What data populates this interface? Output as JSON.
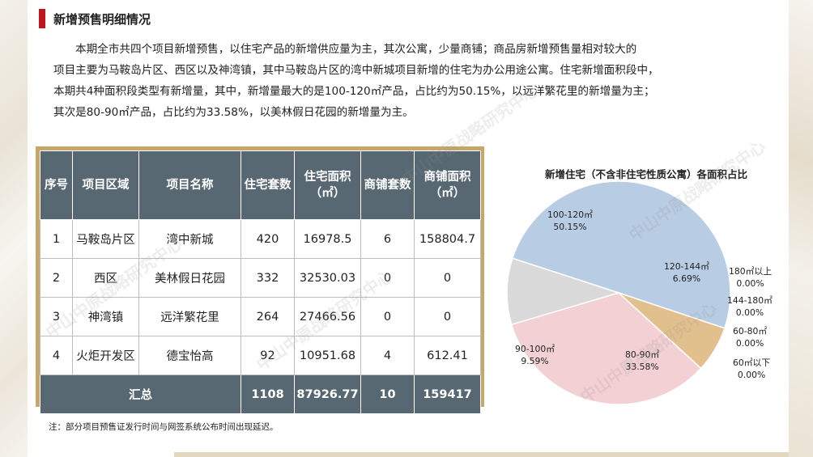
{
  "title": "新增预售明细情况",
  "paragraph": [
    "本期全市共四个项目新增预售，以住宅产品的新增供应量为主，其次公寓，少量商铺；商品房新增预售量相对较大的",
    "项目主要为马鞍岛片区、西区以及神湾镇，其中马鞍岛片区的湾中新城项目新增的住宅为办公用途公寓。住宅新增面积段中，",
    "本期共4种面积段类型有新增量，其中，新增量最大的是100-120㎡产品，占比约为50.15%，以远洋繁花里的新增量为主；",
    "其次是80-90㎡产品，占比约为33.58%，以美林假日花园的新增量为主。"
  ],
  "table": {
    "headers": [
      "序号",
      "项目区域",
      "项目名称",
      "住宅套数",
      "住宅面积（㎡）",
      "商铺套数",
      "商铺面积（㎡）"
    ],
    "rows": [
      [
        "1",
        "马鞍岛片区",
        "湾中新城",
        "420",
        "16978.5",
        "6",
        "158804.7"
      ],
      [
        "2",
        "西区",
        "美林假日花园",
        "332",
        "32530.03",
        "0",
        "0"
      ],
      [
        "3",
        "神湾镇",
        "远洋繁花里",
        "264",
        "27466.56",
        "0",
        "0"
      ],
      [
        "4",
        "火炬开发区",
        "德宝怡高",
        "92",
        "10951.68",
        "4",
        "612.41"
      ]
    ],
    "total": [
      "汇总",
      "1108",
      "87926.77",
      "10",
      "159417"
    ]
  },
  "note": "注：部分项目预售证发行时间与网签系统公布时间出现延迟。",
  "chart_data": {
    "type": "pie",
    "title": "新增住宅（不含非住宅性质公寓）各面积占比",
    "slices": [
      {
        "label": "100-120㎡",
        "percent_text": "50.15%",
        "value": 50.15,
        "color": "#b8cce4"
      },
      {
        "label": "120-144㎡",
        "percent_text": "6.69%",
        "value": 6.69,
        "color": "#e2c08d"
      },
      {
        "label": "180㎡以上",
        "percent_text": "0.00%",
        "value": 0,
        "color": "#8faadc"
      },
      {
        "label": "144-180㎡",
        "percent_text": "0.00%",
        "value": 0,
        "color": "#a9d18e"
      },
      {
        "label": "60-80㎡",
        "percent_text": "0.00%",
        "value": 0,
        "color": "#f4b183"
      },
      {
        "label": "60㎡以下",
        "percent_text": "0.00%",
        "value": 0,
        "color": "#c9c9c9"
      },
      {
        "label": "80-90㎡",
        "percent_text": "33.58%",
        "value": 33.58,
        "color": "#f2d0d3"
      },
      {
        "label": "90-100㎡",
        "percent_text": "9.59%",
        "value": 9.59,
        "color": "#d9d9d9"
      }
    ]
  },
  "watermark": "中山中原战略研究中心"
}
